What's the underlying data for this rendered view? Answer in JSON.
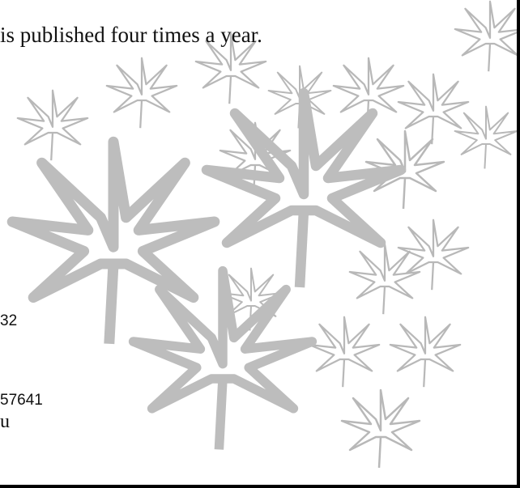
{
  "document": {
    "line1": "is published four times a year.",
    "fragments": [
      "32",
      "57641",
      "u"
    ]
  }
}
